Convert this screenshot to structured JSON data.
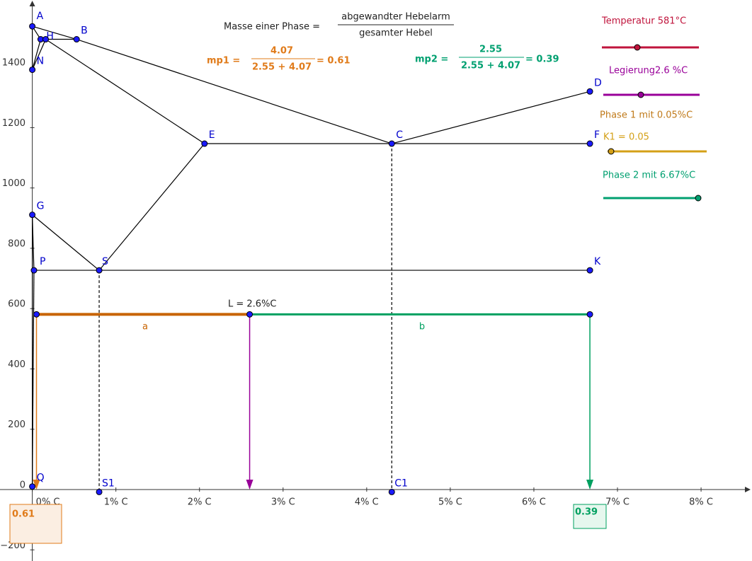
{
  "formula": {
    "label": "Masse einer Phase =",
    "numerator": "abgewandter  Hebelarm",
    "denominator": "gesamter  Hebel"
  },
  "mp1": {
    "label": "mp1 =",
    "numerator": "4.07",
    "denominator": "2.55 + 4.07",
    "result": "= 0.61"
  },
  "mp2": {
    "label": "mp2 =",
    "numerator": "2.55",
    "denominator": "2.55 + 4.07",
    "result": "= 0.39"
  },
  "sliders": {
    "temperature": "Temperatur 581°C",
    "alloy": "Legierung2.6 %C",
    "phase1": "Phase 1 mit  0.05%C",
    "k1": "K1 = 0.05",
    "phase2": "Phase 2 mit 6.67%C"
  },
  "points": [
    "A",
    "H",
    "J",
    "B",
    "N",
    "D",
    "E",
    "C",
    "F",
    "G",
    "P",
    "S",
    "K",
    "Q",
    "S1",
    "C1"
  ],
  "lever": {
    "label": "L = 2.6%C",
    "a": "a",
    "b": "b",
    "result1": "0.61",
    "result2": "0.39"
  },
  "x_axis_ticks": [
    "0% C",
    "1% C",
    "2% C",
    "3% C",
    "4% C",
    "5% C",
    "6% C",
    "7% C",
    "8% C"
  ],
  "y_axis_ticks": [
    0,
    200,
    400,
    600,
    800,
    1000,
    1200,
    1400,
    {
      "value": -200,
      "label": "−200"
    }
  ]
}
